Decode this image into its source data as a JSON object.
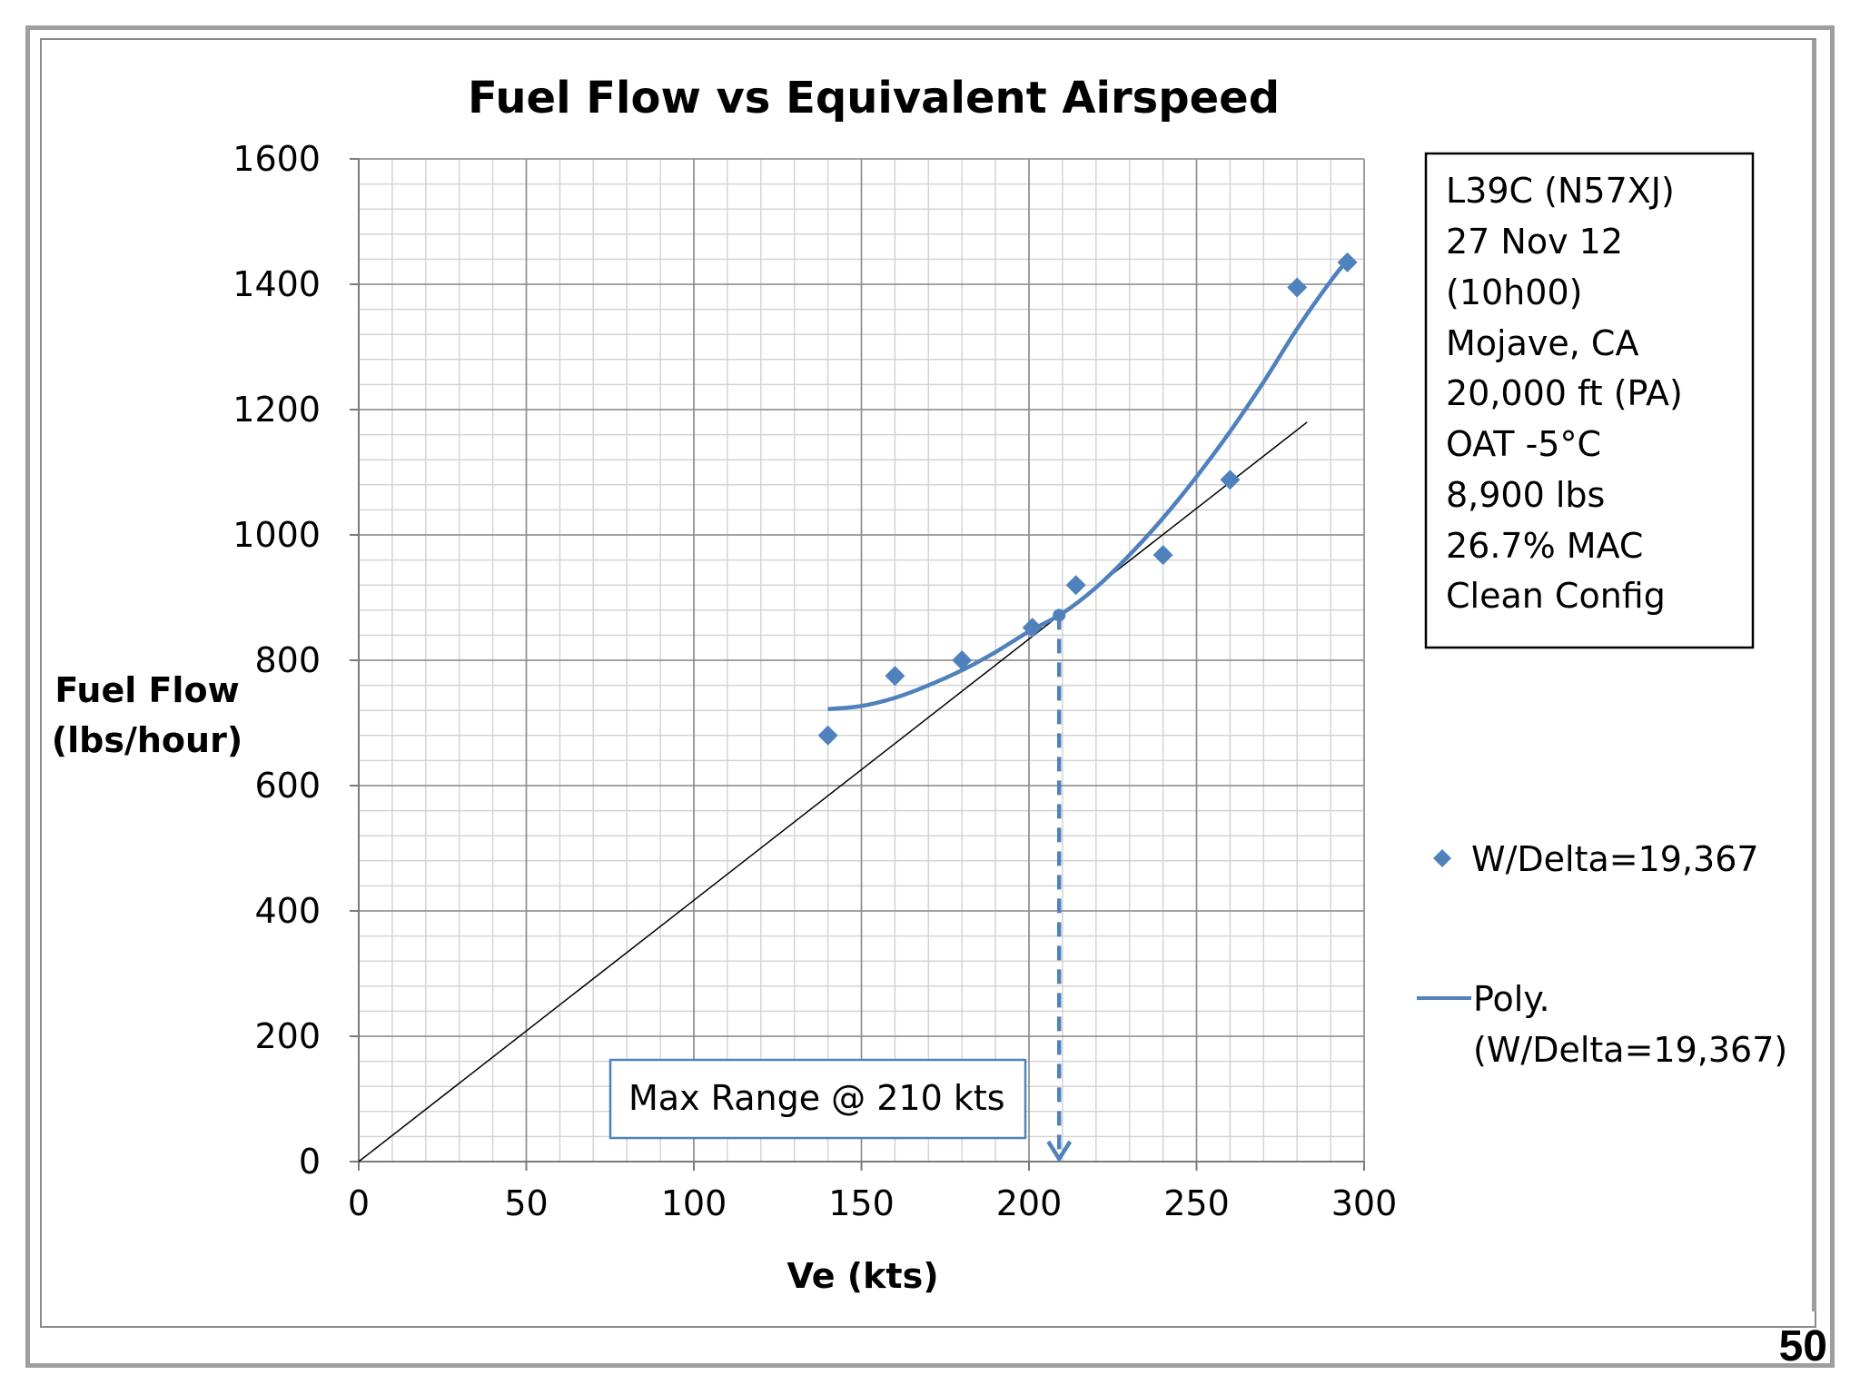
{
  "page_number": "50",
  "chart_data": {
    "type": "scatter",
    "title": "Fuel Flow vs Equivalent Airspeed",
    "xlabel": "Ve (kts)",
    "ylabel_lines": [
      "Fuel Flow",
      "(lbs/hour)"
    ],
    "xlim": [
      0,
      300
    ],
    "ylim": [
      0,
      1600
    ],
    "x_ticks": [
      0,
      50,
      100,
      150,
      200,
      250,
      300
    ],
    "y_ticks": [
      0,
      200,
      400,
      600,
      800,
      1000,
      1200,
      1400,
      1600
    ],
    "x_minor_step": 10,
    "y_minor_step": 40,
    "grid": true,
    "series": [
      {
        "name": "W/Delta=19,367",
        "kind": "points",
        "marker": "diamond",
        "color": "#4f81bd",
        "x": [
          140,
          160,
          180,
          201,
          214,
          240,
          260,
          280,
          295
        ],
        "y": [
          680,
          775,
          800,
          852,
          920,
          968,
          1088,
          1395,
          1435
        ]
      },
      {
        "name": "Poly. (W/Delta=19,367)",
        "kind": "trendline",
        "color": "#4f81bd",
        "x": [
          140,
          150,
          160,
          170,
          180,
          190,
          200,
          210,
          220,
          230,
          240,
          250,
          260,
          270,
          280,
          290,
          296
        ],
        "y": [
          722,
          727,
          740,
          760,
          784,
          813,
          846,
          875,
          916,
          968,
          1027,
          1093,
          1165,
          1244,
          1329,
          1405,
          1445
        ]
      },
      {
        "name": "tangent",
        "kind": "line",
        "color": "#000000",
        "x": [
          0,
          283
        ],
        "y": [
          0,
          1180
        ]
      }
    ],
    "tangent_point": {
      "x": 209,
      "y": 872
    },
    "annotation": "Max Range @ 210 kts",
    "info_box": [
      "L39C (N57XJ)",
      "27 Nov 12",
      "(10h00)",
      "Mojave, CA",
      "20,000 ft (PA)",
      "OAT -5°C",
      "8,900 lbs",
      "26.7% MAC",
      "Clean Config"
    ],
    "legend": [
      {
        "label": "W/Delta=19,367",
        "symbol": "diamond"
      },
      {
        "label_lines": [
          "Poly.",
          "(W/Delta=19,367)"
        ],
        "symbol": "line"
      }
    ],
    "legend_position": "right"
  }
}
